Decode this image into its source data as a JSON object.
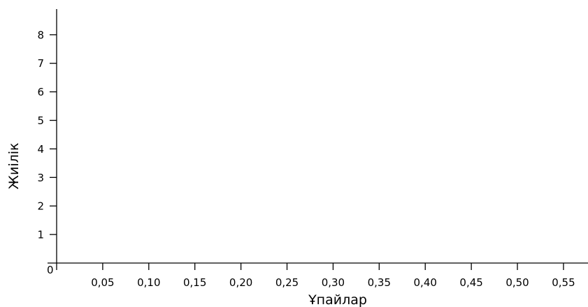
{
  "chart_data": {
    "type": "bar",
    "title": "",
    "xlabel": "Ұпайлар",
    "ylabel": "Жиілік",
    "origin_label": "0",
    "x_ticks": [
      "0,05",
      "0,10",
      "0,15",
      "0,20",
      "0,25",
      "0,30",
      "0,35",
      "0,40",
      "0,45",
      "0,50",
      "0,55"
    ],
    "x_tick_values": [
      0.05,
      0.1,
      0.15,
      0.2,
      0.25,
      0.3,
      0.35,
      0.4,
      0.45,
      0.5,
      0.55
    ],
    "y_ticks": [
      "1",
      "2",
      "3",
      "4",
      "5",
      "6",
      "7",
      "8"
    ],
    "y_tick_values": [
      1,
      2,
      3,
      4,
      5,
      6,
      7,
      8
    ],
    "xlim": [
      0,
      0.5766
    ],
    "ylim": [
      0,
      8.9
    ],
    "categories": [],
    "values": [],
    "grid": false,
    "legend": "none"
  }
}
